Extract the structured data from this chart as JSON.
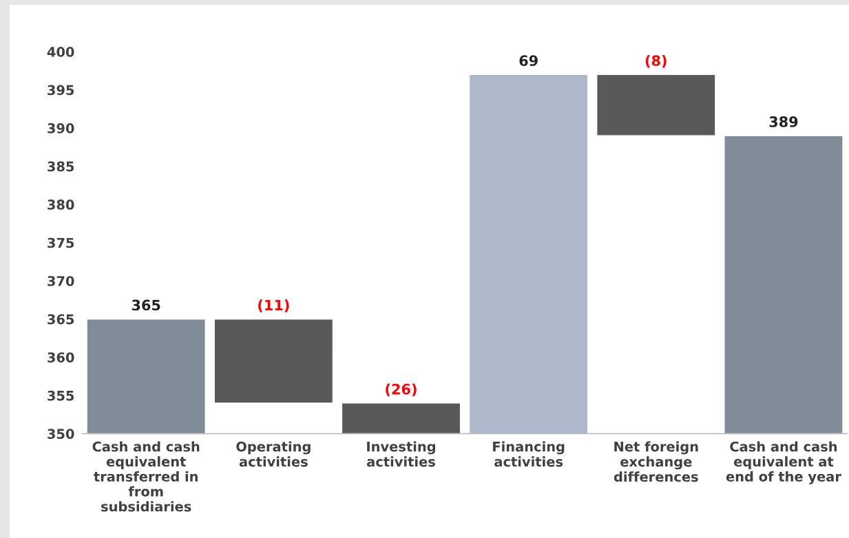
{
  "chart_data": {
    "type": "bar",
    "categories": [
      "Cash and cash\nequivalent\ntransferred in\nfrom\nsubsidiaries",
      "Operating\nactivities",
      "Investing\nactivities",
      "Financing\nactivities",
      "Net foreign\nexchange\ndifferences",
      "Cash and cash\nequivalent at\nend of the year"
    ],
    "values": [
      365,
      -11,
      -26,
      69,
      -8,
      389
    ],
    "base": [
      0,
      365,
      354,
      328,
      397,
      0
    ],
    "colors": [
      "#808d99",
      "#595959",
      "#595959",
      "#adb9ca",
      "#595959",
      "#808d99"
    ],
    "value_labels": [
      "365",
      "(11)",
      "(26)",
      "69",
      "(8)",
      "389"
    ],
    "ylim": [
      350,
      400
    ],
    "yticks": [
      350,
      355,
      360,
      365,
      370,
      375,
      380,
      385,
      390,
      395,
      400
    ],
    "grid": false,
    "legend": false
  }
}
